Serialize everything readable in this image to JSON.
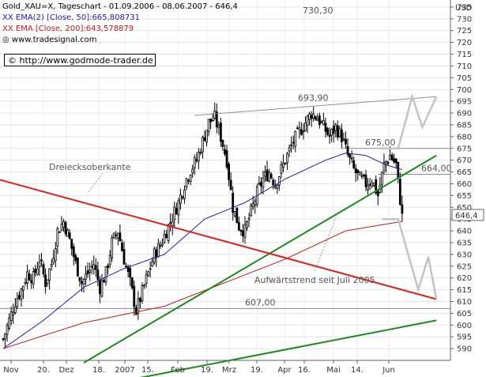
{
  "legend": {
    "title": "Gold_XAU=X, Tageschart - 01.09.2006 - 08.06.2007 - 646,4",
    "ema50": "EMA(2) [Close, 50]:665,808731",
    "ema200": "EMA [Close, 200]:643,578879",
    "source": "www.tradesignal.com"
  },
  "watermark": "© http://www.godmode-trader.de",
  "chart_data": {
    "type": "candlestick",
    "currency": "USD",
    "ylim": [
      585,
      738
    ],
    "y_ticks": [
      590,
      595,
      600,
      605,
      610,
      615,
      620,
      625,
      630,
      635,
      640,
      645,
      650,
      655,
      660,
      665,
      670,
      675,
      680,
      685,
      690,
      695,
      700,
      705,
      710,
      715,
      720,
      725,
      730,
      735
    ],
    "last_price_label": "646,4",
    "last_price": 646.4,
    "x_ticks": [
      "Nov",
      "20.",
      "Dez",
      "18.",
      "2007",
      "15.",
      "Feb",
      "19.",
      "Mrz",
      "19.",
      "Apr",
      "16.",
      "Mai",
      "14.",
      "Jun"
    ],
    "annotations": {
      "top_level": "730,30",
      "high": "693,90",
      "resistance": "675,00",
      "support1": "664,00",
      "support2": "607,00",
      "triangle_label": "Dreiecksoberkante",
      "trend_label": "Aufwärtstrend seit Juli 2005"
    },
    "horizontal_levels": [
      675.0,
      664.0,
      607.0
    ],
    "close_anchors": [
      [
        0,
        594
      ],
      [
        3,
        602
      ],
      [
        6,
        610
      ],
      [
        9,
        615
      ],
      [
        12,
        622
      ],
      [
        15,
        620
      ],
      [
        18,
        628
      ],
      [
        21,
        618
      ],
      [
        24,
        626
      ],
      [
        27,
        640
      ],
      [
        30,
        644
      ],
      [
        33,
        636
      ],
      [
        36,
        626
      ],
      [
        39,
        618
      ],
      [
        42,
        622
      ],
      [
        45,
        626
      ],
      [
        48,
        616
      ],
      [
        51,
        622
      ],
      [
        54,
        635
      ],
      [
        57,
        640
      ],
      [
        60,
        628
      ],
      [
        63,
        618
      ],
      [
        66,
        606
      ],
      [
        69,
        614
      ],
      [
        72,
        622
      ],
      [
        75,
        630
      ],
      [
        78,
        634
      ],
      [
        81,
        640
      ],
      [
        84,
        646
      ],
      [
        87,
        652
      ],
      [
        90,
        660
      ],
      [
        93,
        666
      ],
      [
        96,
        670
      ],
      [
        99,
        678
      ],
      [
        102,
        686
      ],
      [
        105,
        688
      ],
      [
        108,
        680
      ],
      [
        111,
        670
      ],
      [
        114,
        650
      ],
      [
        117,
        642
      ],
      [
        120,
        640
      ],
      [
        123,
        648
      ],
      [
        126,
        656
      ],
      [
        129,
        662
      ],
      [
        132,
        665
      ],
      [
        135,
        660
      ],
      [
        138,
        666
      ],
      [
        141,
        672
      ],
      [
        144,
        678
      ],
      [
        147,
        682
      ],
      [
        150,
        686
      ],
      [
        153,
        690
      ],
      [
        156,
        688
      ],
      [
        159,
        684
      ],
      [
        162,
        680
      ],
      [
        165,
        684
      ],
      [
        168,
        680
      ],
      [
        171,
        672
      ],
      [
        174,
        666
      ],
      [
        177,
        662
      ],
      [
        180,
        660
      ],
      [
        183,
        662
      ],
      [
        186,
        655
      ],
      [
        189,
        668
      ],
      [
        192,
        672
      ],
      [
        195,
        668
      ],
      [
        198,
        646
      ]
    ],
    "ema50_anchors": [
      [
        0,
        590
      ],
      [
        20,
        602
      ],
      [
        40,
        616
      ],
      [
        60,
        624
      ],
      [
        80,
        630
      ],
      [
        100,
        645
      ],
      [
        120,
        652
      ],
      [
        140,
        662
      ],
      [
        160,
        670
      ],
      [
        170,
        673
      ],
      [
        180,
        672
      ],
      [
        190,
        668
      ],
      [
        198,
        666
      ]
    ],
    "ema200_anchors": [
      [
        0,
        590
      ],
      [
        40,
        601
      ],
      [
        80,
        608
      ],
      [
        110,
        618
      ],
      [
        140,
        628
      ],
      [
        170,
        640
      ],
      [
        198,
        644
      ]
    ],
    "trendlines": [
      {
        "name": "uptrend-since-july-2005",
        "points": [
          [
            40,
            584
          ],
          [
            215,
            672
          ]
        ],
        "color": "#1a8a1a"
      },
      {
        "name": "lower-green-line",
        "points": [
          [
            40,
            573
          ],
          [
            215,
            602
          ]
        ],
        "color": "#1a8a1a"
      },
      {
        "name": "triangle-upper-edge",
        "points": [
          [
            -3,
            662
          ],
          [
            215,
            611
          ]
        ],
        "color": "#e31d1d"
      },
      {
        "name": "upper-channel",
        "points": [
          [
            95,
            689
          ],
          [
            215,
            697
          ]
        ],
        "color": "#909090"
      }
    ],
    "projection_paths": [
      {
        "name": "upper-zigzag-projection",
        "points": [
          [
            188,
            675
          ],
          [
            196,
            675
          ],
          [
            203,
            697
          ],
          [
            208,
            684
          ],
          [
            215,
            697
          ]
        ]
      },
      {
        "name": "lower-zigzag-projection",
        "points": [
          [
            188,
            645
          ],
          [
            196,
            645
          ],
          [
            206,
            615
          ],
          [
            211,
            629
          ],
          [
            215,
            611
          ]
        ]
      }
    ]
  }
}
